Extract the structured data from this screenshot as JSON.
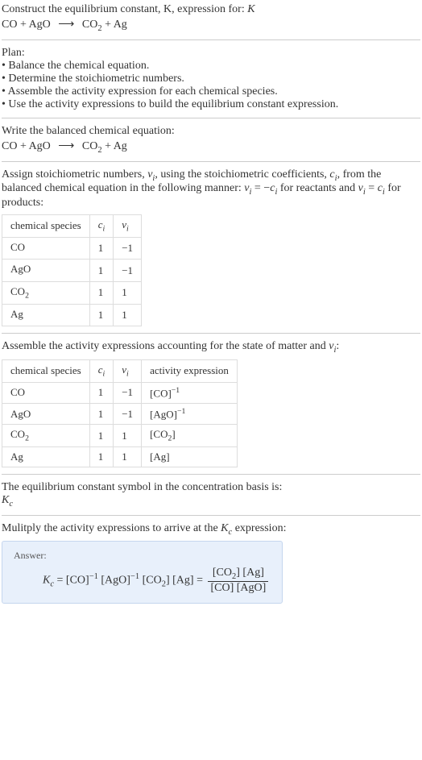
{
  "intro": {
    "line1": "Construct the equilibrium constant, K, expression for:",
    "equation_left": "CO + AgO",
    "equation_arrow": "⟶",
    "equation_right_pre": "CO",
    "equation_right_sub": "2",
    "equation_right_post": " + Ag"
  },
  "plan": {
    "title": "Plan:",
    "items": [
      "• Balance the chemical equation.",
      "• Determine the stoichiometric numbers.",
      "• Assemble the activity expression for each chemical species.",
      "• Use the activity expressions to build the equilibrium constant expression."
    ]
  },
  "balanced": {
    "title": "Write the balanced chemical equation:",
    "equation_left": "CO + AgO",
    "equation_arrow": "⟶",
    "equation_right_pre": "CO",
    "equation_right_sub": "2",
    "equation_right_post": " + Ag"
  },
  "assign": {
    "text_pre": "Assign stoichiometric numbers, ",
    "nu": "ν",
    "nu_sub": "i",
    "text_mid1": ", using the stoichiometric coefficients, ",
    "c": "c",
    "c_sub": "i",
    "text_mid2": ", from the balanced chemical equation in the following manner: ",
    "rel1_l": "ν",
    "rel1_ls": "i",
    "rel1_eq": " = −",
    "rel1_r": "c",
    "rel1_rs": "i",
    "rel1_post": " for reactants and ",
    "rel2_l": "ν",
    "rel2_ls": "i",
    "rel2_eq": " = ",
    "rel2_r": "c",
    "rel2_rs": "i",
    "rel2_post": " for products:"
  },
  "table1": {
    "h1": "chemical species",
    "h2": "c",
    "h2s": "i",
    "h3": "ν",
    "h3s": "i",
    "rows": [
      {
        "sp_pre": "CO",
        "sp_sub": "",
        "c": "1",
        "nu": "−1"
      },
      {
        "sp_pre": "AgO",
        "sp_sub": "",
        "c": "1",
        "nu": "−1"
      },
      {
        "sp_pre": "CO",
        "sp_sub": "2",
        "c": "1",
        "nu": "1"
      },
      {
        "sp_pre": "Ag",
        "sp_sub": "",
        "c": "1",
        "nu": "1"
      }
    ]
  },
  "assemble": {
    "text_pre": "Assemble the activity expressions accounting for the state of matter and ",
    "nu": "ν",
    "nu_sub": "i",
    "text_post": ":"
  },
  "table2": {
    "h1": "chemical species",
    "h2": "c",
    "h2s": "i",
    "h3": "ν",
    "h3s": "i",
    "h4": "activity expression",
    "rows": [
      {
        "sp_pre": "CO",
        "sp_sub": "",
        "c": "1",
        "nu": "−1",
        "ae_base": "[CO]",
        "ae_exp": "−1"
      },
      {
        "sp_pre": "AgO",
        "sp_sub": "",
        "c": "1",
        "nu": "−1",
        "ae_base": "[AgO]",
        "ae_exp": "−1"
      },
      {
        "sp_pre": "CO",
        "sp_sub": "2",
        "c": "1",
        "nu": "1",
        "ae_base_pre": "[CO",
        "ae_base_sub": "2",
        "ae_base_post": "]",
        "ae_exp": ""
      },
      {
        "sp_pre": "Ag",
        "sp_sub": "",
        "c": "1",
        "nu": "1",
        "ae_base": "[Ag]",
        "ae_exp": ""
      }
    ]
  },
  "symbol": {
    "text": "The equilibrium constant symbol in the concentration basis is:",
    "kc_k": "K",
    "kc_c": "c"
  },
  "multiply": {
    "text_pre": "Mulitply the activity expressions to arrive at the ",
    "kc_k": "K",
    "kc_c": "c",
    "text_post": " expression:"
  },
  "answer": {
    "label": "Answer:",
    "kc_k": "K",
    "kc_c": "c",
    "eq": " = ",
    "t1": "[CO]",
    "e1": "−1",
    "t2": " [AgO]",
    "e2": "−1",
    "t3_pre": " [CO",
    "t3_sub": "2",
    "t3_post": "] [Ag] = ",
    "num_pre": "[CO",
    "num_sub": "2",
    "num_post": "] [Ag]",
    "den": "[CO] [AgO]"
  }
}
